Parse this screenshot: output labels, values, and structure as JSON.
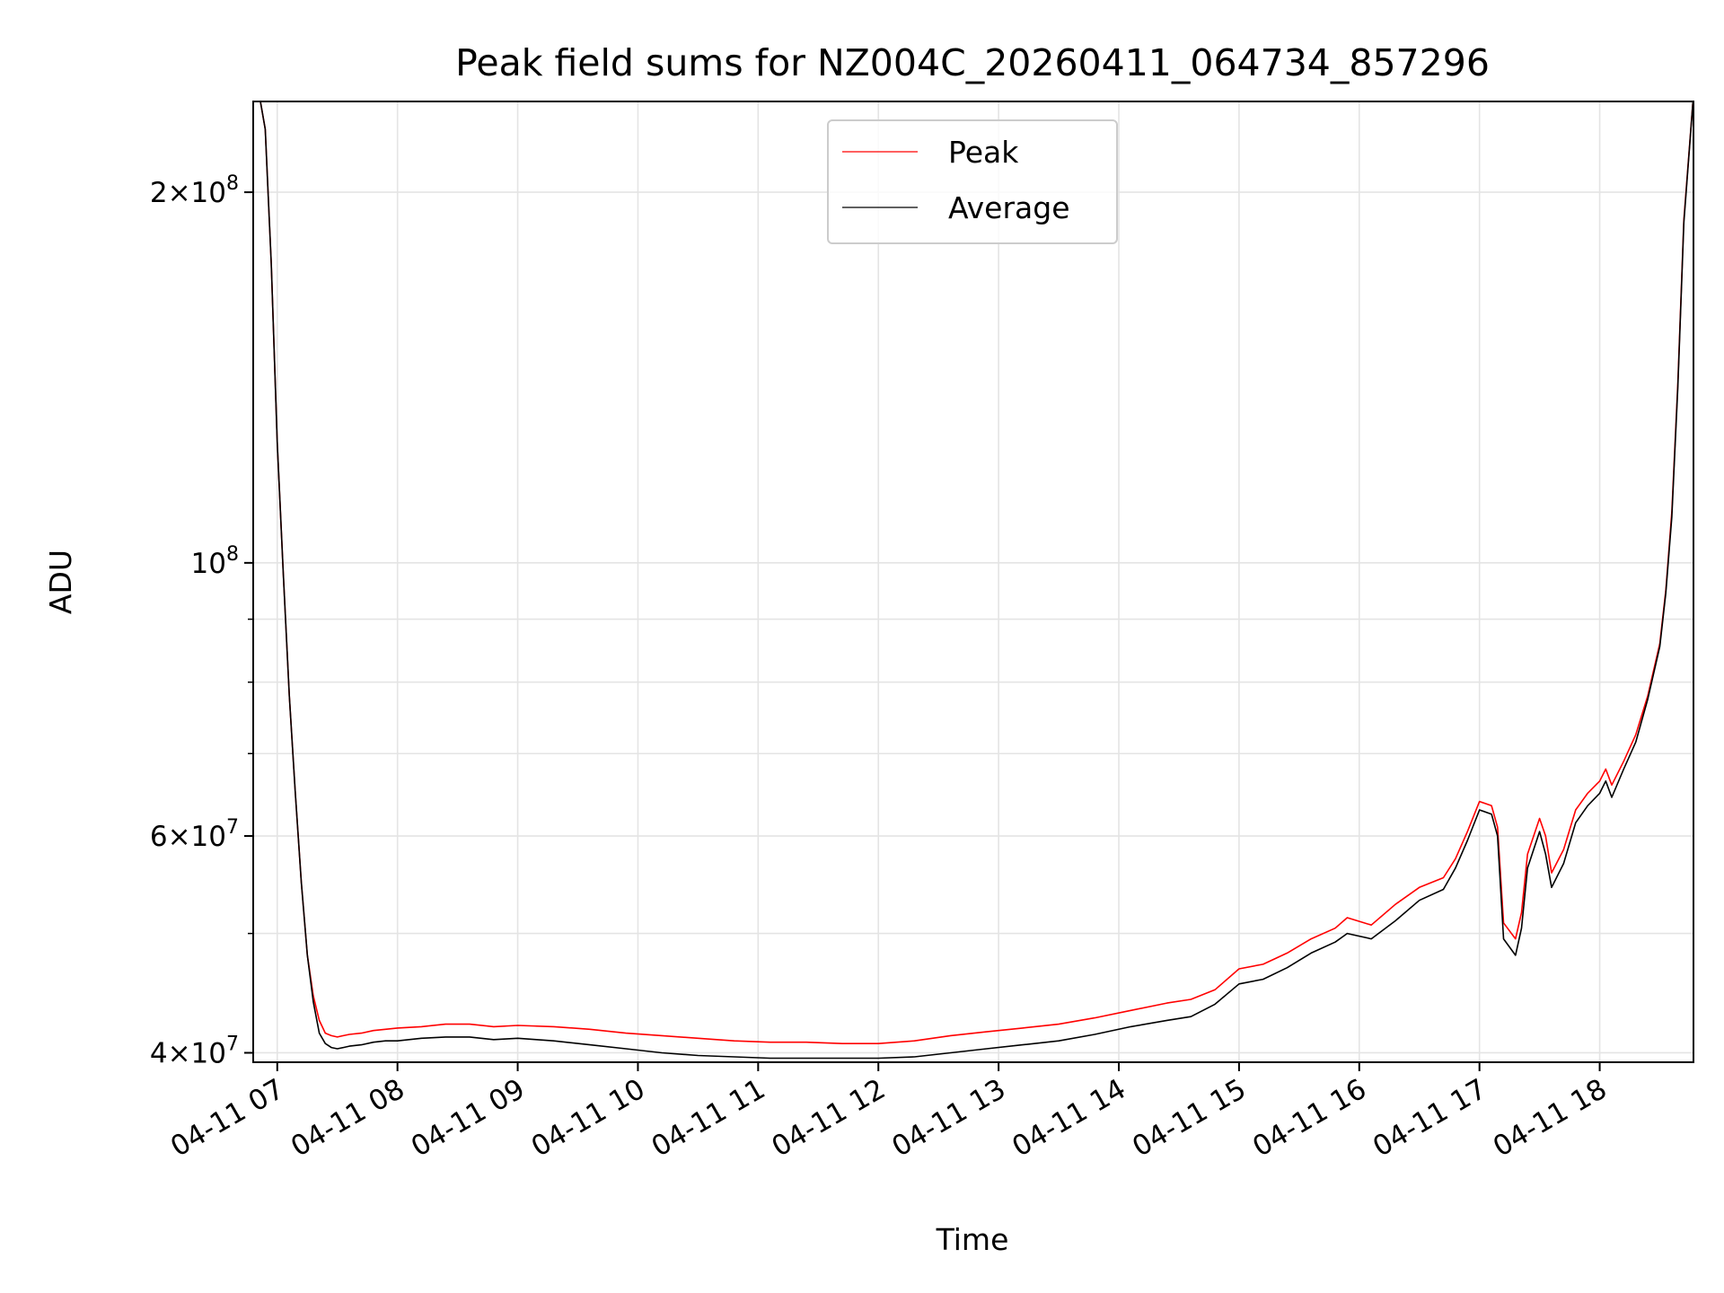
{
  "chart_data": {
    "type": "line",
    "title": "Peak field sums for NZ004C_20260411_064734_857296",
    "xlabel": "Time",
    "ylabel": "ADU",
    "yscale": "log",
    "xlim_hours": [
      6.8,
      18.78
    ],
    "ylim": [
      39300000,
      237000000
    ],
    "grid": true,
    "legend_position": "upper center",
    "x_ticks": [
      {
        "hour": 7,
        "label": "04-11 07"
      },
      {
        "hour": 8,
        "label": "04-11 08"
      },
      {
        "hour": 9,
        "label": "04-11 09"
      },
      {
        "hour": 10,
        "label": "04-11 10"
      },
      {
        "hour": 11,
        "label": "04-11 11"
      },
      {
        "hour": 12,
        "label": "04-11 12"
      },
      {
        "hour": 13,
        "label": "04-11 13"
      },
      {
        "hour": 14,
        "label": "04-11 14"
      },
      {
        "hour": 15,
        "label": "04-11 15"
      },
      {
        "hour": 16,
        "label": "04-11 16"
      },
      {
        "hour": 17,
        "label": "04-11 17"
      },
      {
        "hour": 18,
        "label": "04-11 18"
      }
    ],
    "y_major_ticks": [
      {
        "value": 40000000,
        "mantissa": "4",
        "exponent": "7"
      },
      {
        "value": 60000000,
        "mantissa": "6",
        "exponent": "7"
      },
      {
        "value": 100000000,
        "mantissa": "",
        "exponent": "8"
      },
      {
        "value": 200000000,
        "mantissa": "2",
        "exponent": "8"
      }
    ],
    "y_minor_gridlines": [
      50000000,
      70000000,
      80000000,
      90000000
    ],
    "series": [
      {
        "name": "Peak",
        "color": "#ff0000",
        "x": [
          6.8,
          6.85,
          6.9,
          6.95,
          7.0,
          7.05,
          7.1,
          7.15,
          7.2,
          7.25,
          7.3,
          7.35,
          7.4,
          7.45,
          7.5,
          7.55,
          7.6,
          7.7,
          7.8,
          7.9,
          8.0,
          8.2,
          8.4,
          8.6,
          8.8,
          9.0,
          9.3,
          9.6,
          9.9,
          10.2,
          10.5,
          10.8,
          11.1,
          11.4,
          11.7,
          12.0,
          12.3,
          12.6,
          12.9,
          13.2,
          13.5,
          13.8,
          14.1,
          14.4,
          14.6,
          14.8,
          15.0,
          15.2,
          15.4,
          15.6,
          15.8,
          15.9,
          16.1,
          16.3,
          16.5,
          16.7,
          16.8,
          16.9,
          17.0,
          17.1,
          17.15,
          17.2,
          17.3,
          17.35,
          17.4,
          17.5,
          17.55,
          17.6,
          17.7,
          17.8,
          17.9,
          18.0,
          18.05,
          18.1,
          18.2,
          18.3,
          18.4,
          18.5,
          18.55,
          18.6,
          18.65,
          18.7,
          18.78
        ],
        "values": [
          240000000,
          240000000,
          225000000,
          175000000,
          125000000,
          98000000,
          78000000,
          65000000,
          55000000,
          48000000,
          44500000,
          42500000,
          41500000,
          41300000,
          41200000,
          41300000,
          41400000,
          41500000,
          41700000,
          41800000,
          41900000,
          42000000,
          42200000,
          42200000,
          42000000,
          42100000,
          42000000,
          41800000,
          41500000,
          41300000,
          41100000,
          40900000,
          40800000,
          40800000,
          40700000,
          40700000,
          40900000,
          41300000,
          41600000,
          41900000,
          42200000,
          42700000,
          43300000,
          43900000,
          44200000,
          45000000,
          46800000,
          47200000,
          48200000,
          49500000,
          50500000,
          51500000,
          50800000,
          52800000,
          54500000,
          55500000,
          57500000,
          60500000,
          64000000,
          63500000,
          61000000,
          51000000,
          49500000,
          52000000,
          58000000,
          62000000,
          60000000,
          56000000,
          58500000,
          63000000,
          65000000,
          66500000,
          68000000,
          66000000,
          69000000,
          72500000,
          78000000,
          86000000,
          95000000,
          110000000,
          140000000,
          190000000,
          240000000
        ]
      },
      {
        "name": "Average",
        "color": "#000000",
        "x": [
          6.8,
          6.85,
          6.9,
          6.95,
          7.0,
          7.05,
          7.1,
          7.15,
          7.2,
          7.25,
          7.3,
          7.35,
          7.4,
          7.45,
          7.5,
          7.55,
          7.6,
          7.7,
          7.8,
          7.9,
          8.0,
          8.2,
          8.4,
          8.6,
          8.8,
          9.0,
          9.3,
          9.6,
          9.9,
          10.2,
          10.5,
          10.8,
          11.1,
          11.4,
          11.7,
          12.0,
          12.3,
          12.6,
          12.9,
          13.2,
          13.5,
          13.8,
          14.1,
          14.4,
          14.6,
          14.8,
          15.0,
          15.2,
          15.4,
          15.6,
          15.8,
          15.9,
          16.1,
          16.3,
          16.5,
          16.7,
          16.8,
          16.9,
          17.0,
          17.1,
          17.15,
          17.2,
          17.3,
          17.35,
          17.4,
          17.5,
          17.55,
          17.6,
          17.7,
          17.8,
          17.9,
          18.0,
          18.05,
          18.1,
          18.2,
          18.3,
          18.4,
          18.5,
          18.55,
          18.6,
          18.65,
          18.7,
          18.78
        ],
        "values": [
          240000000,
          240000000,
          225000000,
          175000000,
          125000000,
          98000000,
          78000000,
          65000000,
          55000000,
          48000000,
          44000000,
          41500000,
          40700000,
          40400000,
          40300000,
          40400000,
          40500000,
          40600000,
          40800000,
          40900000,
          40900000,
          41100000,
          41200000,
          41200000,
          41000000,
          41100000,
          40900000,
          40600000,
          40300000,
          40000000,
          39800000,
          39700000,
          39600000,
          39600000,
          39600000,
          39600000,
          39700000,
          40000000,
          40300000,
          40600000,
          40900000,
          41400000,
          42000000,
          42500000,
          42800000,
          43800000,
          45500000,
          45900000,
          46900000,
          48200000,
          49200000,
          50000000,
          49500000,
          51200000,
          53200000,
          54300000,
          56500000,
          59500000,
          63000000,
          62500000,
          60000000,
          49500000,
          48000000,
          50500000,
          56500000,
          60500000,
          58000000,
          54500000,
          57000000,
          61500000,
          63500000,
          65000000,
          66500000,
          64500000,
          68000000,
          71500000,
          77500000,
          85500000,
          94500000,
          109000000,
          139000000,
          189000000,
          240000000
        ]
      }
    ]
  }
}
